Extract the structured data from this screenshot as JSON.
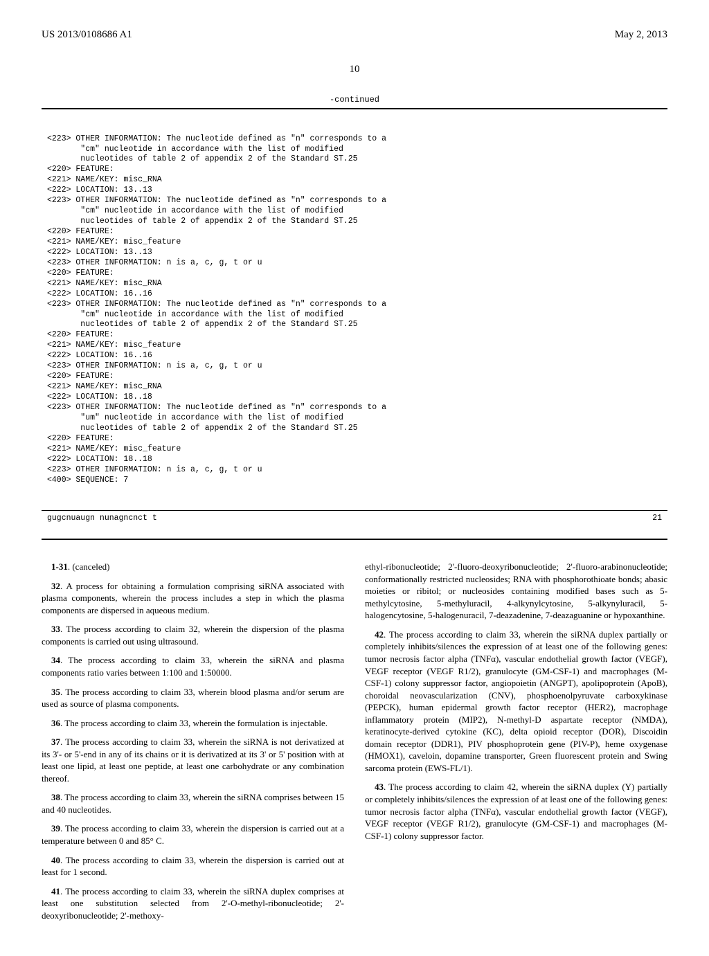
{
  "header": {
    "pub_number": "US 2013/0108686 A1",
    "pub_date": "May 2, 2013",
    "page": "10"
  },
  "sequence": {
    "continued": "-continued",
    "lines": [
      "<223> OTHER INFORMATION: The nucleotide defined as \"n\" corresponds to a",
      "       \"cm\" nucleotide in accordance with the list of modified",
      "       nucleotides of table 2 of appendix 2 of the Standard ST.25",
      "<220> FEATURE:",
      "<221> NAME/KEY: misc_RNA",
      "<222> LOCATION: 13..13",
      "<223> OTHER INFORMATION: The nucleotide defined as \"n\" corresponds to a",
      "       \"cm\" nucleotide in accordance with the list of modified",
      "       nucleotides of table 2 of appendix 2 of the Standard ST.25",
      "<220> FEATURE:",
      "<221> NAME/KEY: misc_feature",
      "<222> LOCATION: 13..13",
      "<223> OTHER INFORMATION: n is a, c, g, t or u",
      "<220> FEATURE:",
      "<221> NAME/KEY: misc_RNA",
      "<222> LOCATION: 16..16",
      "<223> OTHER INFORMATION: The nucleotide defined as \"n\" corresponds to a",
      "       \"cm\" nucleotide in accordance with the list of modified",
      "       nucleotides of table 2 of appendix 2 of the Standard ST.25",
      "<220> FEATURE:",
      "<221> NAME/KEY: misc_feature",
      "<222> LOCATION: 16..16",
      "<223> OTHER INFORMATION: n is a, c, g, t or u",
      "<220> FEATURE:",
      "<221> NAME/KEY: misc_RNA",
      "<222> LOCATION: 18..18",
      "<223> OTHER INFORMATION: The nucleotide defined as \"n\" corresponds to a",
      "       \"um\" nucleotide in accordance with the list of modified",
      "       nucleotides of table 2 of appendix 2 of the Standard ST.25",
      "<220> FEATURE:",
      "<221> NAME/KEY: misc_feature",
      "<222> LOCATION: 18..18",
      "<223> OTHER INFORMATION: n is a, c, g, t or u",
      "",
      "<400> SEQUENCE: 7"
    ],
    "seq_text": "gugcnuaugn nunagncnct t",
    "seq_len": "21"
  },
  "claims": {
    "col1": [
      {
        "num": "1-31",
        "text": ". (canceled)"
      },
      {
        "num": "32",
        "text": ". A process for obtaining a formulation comprising siRNA associated with plasma components, wherein the process includes a step in which the plasma components are dispersed in aqueous medium."
      },
      {
        "num": "33",
        "text": ". The process according to claim 32, wherein the dispersion of the plasma components is carried out using ultrasound."
      },
      {
        "num": "34",
        "text": ". The process according to claim 33, wherein the siRNA and plasma components ratio varies between 1:100 and 1:50000."
      },
      {
        "num": "35",
        "text": ". The process according to claim 33, wherein blood plasma and/or serum are used as source of plasma components."
      },
      {
        "num": "36",
        "text": ". The process according to claim 33, wherein the formulation is injectable."
      },
      {
        "num": "37",
        "text": ". The process according to claim 33, wherein the siRNA is not derivatized at its 3'- or 5'-end in any of its chains or it is derivatized at its 3' or 5' position with at least one lipid, at least one peptide, at least one carbohydrate or any combination thereof."
      },
      {
        "num": "38",
        "text": ". The process according to claim 33, wherein the siRNA comprises between 15 and 40 nucleotides."
      },
      {
        "num": "39",
        "text": ". The process according to claim 33, wherein the dispersion is carried out at a temperature between 0 and 85° C."
      },
      {
        "num": "40",
        "text": ". The process according to claim 33, wherein the dispersion is carried out at least for 1 second."
      },
      {
        "num": "41",
        "text": ". The process according to claim 33, wherein the siRNA duplex comprises at least one substitution selected from 2'-O-methyl-ribonucleotide; 2'-deoxyribonucleotide; 2'-methoxy-"
      }
    ],
    "col2": [
      {
        "num": "",
        "text": "ethyl-ribonucleotide; 2'-fluoro-deoxyribonucleotide; 2'-fluoro-arabinonucleotide; conformationally restricted nucleosides; RNA with phosphorothioate bonds; abasic moieties or ribitol; or nucleosides containing modified bases such as 5-methylcytosine, 5-methyluracil, 4-alkynylcytosine, 5-alkynyluracil, 5-halogencytosine, 5-halogenuracil, 7-deazadenine, 7-deazaguanine or hypoxanthine."
      },
      {
        "num": "42",
        "text": ". The process according to claim 33, wherein the siRNA duplex partially or completely inhibits/silences the expression of at least one of the following genes: tumor necrosis factor alpha (TNFα), vascular endothelial growth factor (VEGF), VEGF receptor (VEGF R1/2), granulocyte (GM-CSF-1) and macrophages (M-CSF-1) colony suppressor factor, angiopoietin (ANGPT), apolipoprotein (ApoB), choroidal neovascularization (CNV), phosphoenolpyruvate carboxykinase (PEPCK), human epidermal growth factor receptor (HER2), macrophage inflammatory protein (MIP2), N-methyl-D aspartate receptor (NMDA), keratinocyte-derived cytokine (KC), delta opioid receptor (DOR), Discoidin domain receptor (DDR1), PIV phosphoprotein gene (PIV-P), heme oxygenase (HMOX1), caveloin, dopamine transporter, Green fluorescent protein and Swing sarcoma protein (EWS-FL/1)."
      },
      {
        "num": "43",
        "text": ". The process according to claim 42, wherein the siRNA duplex (Y) partially or completely inhibits/silences the expression of at least one of the following genes: tumor necrosis factor alpha (TNFα), vascular endothelial growth factor (VEGF), VEGF receptor (VEGF R1/2), granulocyte (GM-CSF-1) and macrophages (M-CSF-1) colony suppressor factor."
      }
    ]
  }
}
